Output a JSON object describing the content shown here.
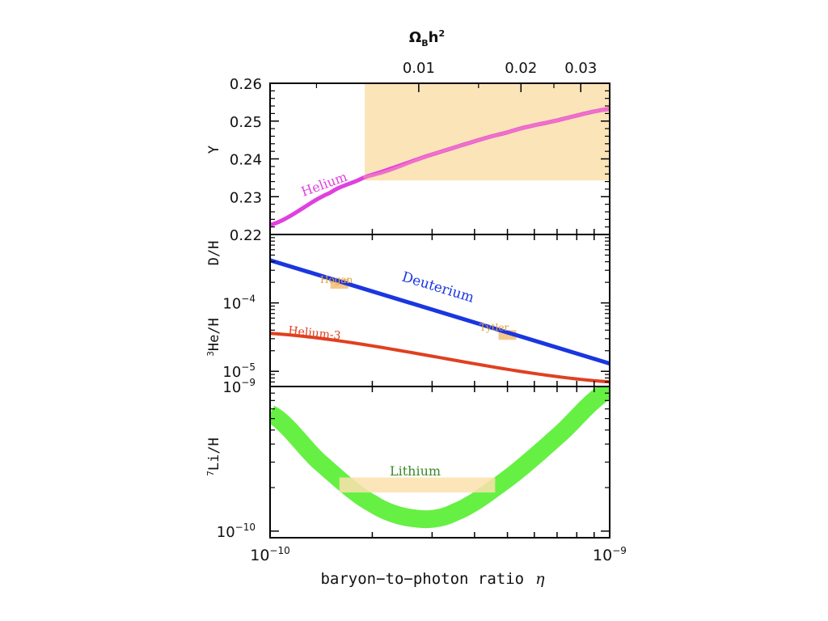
{
  "chart_data": {
    "type": "line",
    "shared_x": {
      "scale": "log",
      "range": [
        1e-10,
        1e-09
      ],
      "ticks": [
        {
          "mant": "10",
          "exp": "−10"
        },
        {
          "mant": "10",
          "exp": "−9"
        }
      ],
      "label": "baryon−to−photon ratio",
      "label_symbol": "η"
    },
    "top_axis": {
      "label_main": "Ω",
      "label_sub": "B",
      "label_rest": "h",
      "label_sup": "2",
      "ticks": [
        {
          "label": "0.01",
          "eta": 2.74e-10
        },
        {
          "label": "0.02",
          "eta": 5.48e-10
        },
        {
          "label": "0.03",
          "eta": 8.22e-10
        }
      ]
    },
    "panels": [
      {
        "id": "helium",
        "ylabel": "Y",
        "yscale": "linear",
        "ylim": [
          0.22,
          0.26
        ],
        "yticks": [
          "0.26",
          "0.25",
          "0.24",
          "0.23",
          "0.22"
        ],
        "ytick_values": [
          0.26,
          0.25,
          0.24,
          0.23,
          0.22
        ],
        "series": [
          {
            "name": "Helium",
            "color": "#e040e0",
            "color_light": "#f070c8",
            "x": [
              1e-10,
              1.5e-10,
              1.9e-10,
              3e-10,
              5e-10,
              7e-10,
              1e-09
            ],
            "y": [
              0.2225,
              0.231,
              0.2352,
              0.2412,
              0.247,
              0.2502,
              0.2532
            ]
          }
        ],
        "bands": [
          {
            "x": [
              1.9e-10,
              1e-09
            ],
            "y": [
              0.2343,
              0.26
            ],
            "color": "#fbe4b8"
          }
        ]
      },
      {
        "id": "light-elements",
        "ylabel_top": "D/H",
        "ylabel_bottom_sup": "3",
        "ylabel_bottom": "He/H",
        "yscale": "log",
        "ylim": [
          6e-06,
          0.001
        ],
        "yticks": [
          {
            "mant": "10",
            "exp": "−4",
            "value": 0.0001
          },
          {
            "mant": "10",
            "exp": "−5",
            "value": 1e-05
          }
        ],
        "series": [
          {
            "name": "Deuterium",
            "color": "#1a36e0",
            "x": [
              1e-10,
              1e-09
            ],
            "y": [
              0.00042,
              1.3e-05
            ]
          },
          {
            "name": "Helium-3",
            "color": "#e04020",
            "x": [
              1e-10,
              1e-09
            ],
            "y": [
              3.6e-05,
              7e-06
            ]
          }
        ],
        "markers": [
          {
            "label": "Hogan",
            "x": 1.6e-10,
            "y": 0.00019,
            "color": "#f5c88a",
            "text_color": "#e0a040"
          },
          {
            "label": "Tytler",
            "x": 5e-10,
            "y": 3.4e-05,
            "color": "#f5c88a",
            "text_color": "#e0a040"
          }
        ]
      },
      {
        "id": "lithium",
        "ylabel_sup": "7",
        "ylabel": "Li/H",
        "yscale": "log",
        "ylim": [
          9e-11,
          1e-09
        ],
        "yticks": [
          {
            "mant": "10",
            "exp": "−9",
            "value": 1e-09
          },
          {
            "mant": "10",
            "exp": "−10",
            "value": 1e-10
          }
        ],
        "series": [
          {
            "name": "Lithium",
            "color": "#66f044",
            "text_color": "#3a8a2a",
            "x": [
              1e-10,
              1.4e-10,
              2e-10,
              2.7e-10,
              3.5e-10,
              5e-10,
              7e-10,
              1e-09
            ],
            "y": [
              6.5e-10,
              3e-10,
              1.55e-10,
              1.22e-10,
              1.35e-10,
              2.3e-10,
              4.5e-10,
              9.5e-10
            ]
          }
        ],
        "bands": [
          {
            "x": [
              1.6e-10,
              4.6e-10
            ],
            "y": [
              1.85e-10,
              2.35e-10
            ],
            "color": "#fbe0ad"
          }
        ]
      }
    ]
  }
}
